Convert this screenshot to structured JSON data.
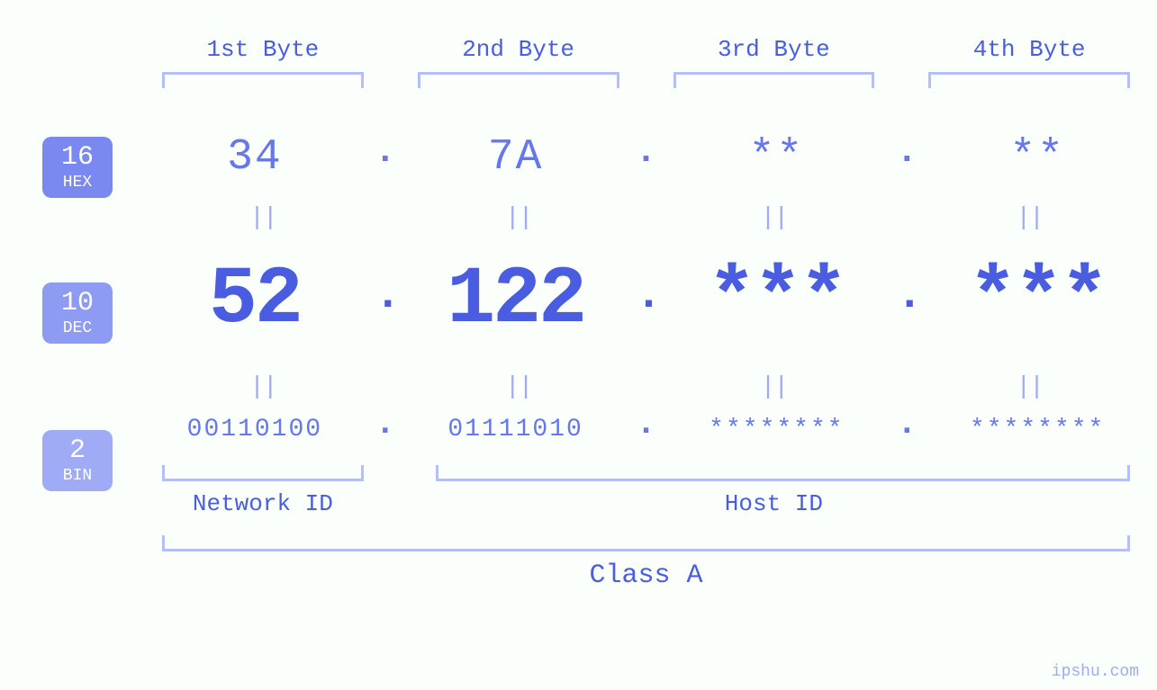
{
  "layout": {
    "background_color": "#fafffc",
    "font_family": "Courier New, monospace"
  },
  "badges": {
    "hex": {
      "num": "16",
      "label": "HEX",
      "bg": "#7a89f0"
    },
    "dec": {
      "num": "10",
      "label": "DEC",
      "bg": "#8e9bf2"
    },
    "bin": {
      "num": "2",
      "label": "BIN",
      "bg": "#9fabf4"
    }
  },
  "byte_headers": [
    "1st Byte",
    "2nd Byte",
    "3rd Byte",
    "4th Byte"
  ],
  "hex": {
    "values": [
      "34",
      "7A",
      "**",
      "**"
    ],
    "fontsize": 48,
    "color": "#6677ea"
  },
  "dec": {
    "values": [
      "52",
      "122",
      "***",
      "***"
    ],
    "fontsize": 90,
    "color": "#4a5de0"
  },
  "bin": {
    "values": [
      "00110100",
      "01111010",
      "********",
      "********"
    ],
    "fontsize": 28,
    "color": "#6677ea"
  },
  "separator": ".",
  "equality": "||",
  "network_host": {
    "network_label": "Network ID",
    "host_label": "Host ID",
    "network_bytes": 1,
    "host_bytes": 3
  },
  "class_label": "Class A",
  "colors": {
    "primary": "#4a5de0",
    "secondary": "#6677ea",
    "bracket": "#b4befa",
    "muted": "#9fabf4"
  },
  "watermark": "ipshu.com"
}
